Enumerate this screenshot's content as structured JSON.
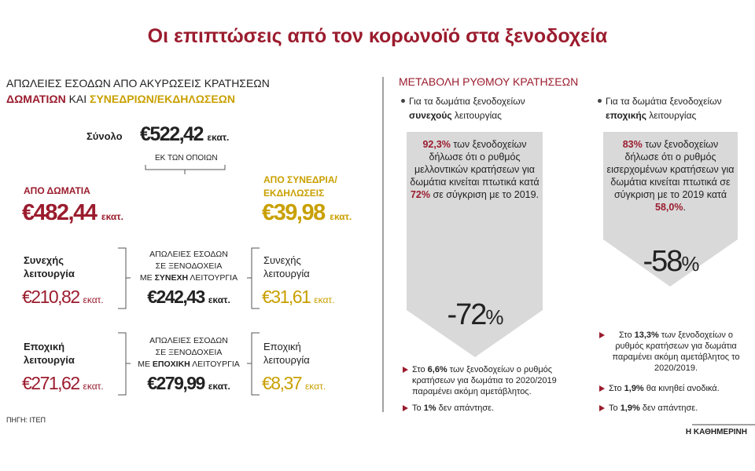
{
  "title": "Οι επιπτώσεις από τον κορωνοϊό στα ξενοδοχεία",
  "unit": "εκατ.",
  "left": {
    "heading": "ΑΠΩΛΕΙΕΣ ΕΣΟΔΩΝ ΑΠΟ ΑΚΥΡΩΣΕΙΣ ΚΡΑΤΗΣΕΩΝ",
    "sub": [
      "ΔΩΜΑΤΙΩΝ",
      " ΚΑΙ ",
      "ΣΥΝΕΔΡΙΩΝ/ΕΚΔΗΛΩΣΕΩΝ"
    ],
    "total_label": "Σύνολο",
    "total_value": "€522,42",
    "of_which": "ΕΚ ΤΩΝ ΟΠΟΙΩΝ",
    "rooms_label": "ΑΠΟ ΔΩΜΑΤΙΑ",
    "rooms_value": "€482,44",
    "conf_label": [
      "ΑΠΟ ΣΥΝΕΔΡΙΑ/",
      "ΕΚΔΗΛΩΣΕΙΣ"
    ],
    "conf_value": "€39,98",
    "rows": [
      {
        "rooms_label": [
          "Συνεχής",
          "λειτουργία"
        ],
        "rooms_value": "€210,82",
        "center": [
          "ΑΠΩΛΕΙΕΣ ΕΣΟΔΩΝ",
          "ΣΕ ΞΕΝΟΔΟΧΕΙΑ"
        ],
        "center_last": [
          "ΜΕ ",
          "ΣΥΝΕΧΗ",
          " ΛΕΙΤΟΥΡΓΙΑ"
        ],
        "center_value": "€242,43",
        "conf_label": [
          "Συνεχής",
          "λειτουργία"
        ],
        "conf_value": "€31,61"
      },
      {
        "rooms_label": [
          "Εποχική",
          "λειτουργία"
        ],
        "rooms_value": "€271,62",
        "center": [
          "ΑΠΩΛΕΙΕΣ ΕΣΟΔΩΝ",
          "ΣΕ ΞΕΝΟΔΟΧΕΙΑ"
        ],
        "center_last": [
          "ΜΕ ",
          "ΕΠΟΧΙΚΗ",
          " ΛΕΙΤΟΥΡΓΙΑ"
        ],
        "center_value": "€279,99",
        "conf_label": [
          "Εποχική",
          "λειτουργία"
        ],
        "conf_value": "€8,37"
      }
    ],
    "source": "ΠΗΓΗ: ΙΤΕΠ"
  },
  "right": {
    "heading": "ΜΕΤΑΒΟΛΗ ΡΥΘΜΟΥ ΚΡΑΤΗΣΕΩΝ",
    "columns": [
      {
        "intro": [
          "Για τα δωμάτια ξενοδοχείων ",
          "συνεχούς",
          " λειτουργίας"
        ],
        "box": [
          "92,3%",
          " των ξενοδοχείων δήλωσε ότι ο ρυθμός μελλοντικών κρατήσεων για δωμάτια κινείται πτωτικά κατά ",
          "72%",
          " σε σύγκριση με το 2019."
        ],
        "big_value": "-72",
        "big_unit": "%",
        "notes": [
          [
            "Στο ",
            "6,6%",
            " των ξενοδοχείων ο ρυθμός κρατήσεων για δωμάτια το 2020/2019 παραμένει ακόμη αμετάβλητος."
          ],
          [
            "Το ",
            "1%",
            " δεν απάντησε."
          ]
        ]
      },
      {
        "intro": [
          "Για τα δωμάτια ξενοδοχείων ",
          "εποχικής",
          " λειτουργίας"
        ],
        "box": [
          "83%",
          " των ξενοδοχείων δήλωσε ότι ο ρυθμός εισερχομένων κρατήσεων για δωμάτια κινείται πτωτικά σε σύγκριση με το 2019 κατά ",
          "58,0%",
          "."
        ],
        "big_value": "-58",
        "big_unit": "%",
        "notes": [
          [
            "Στο ",
            "13,3%",
            " των ξενοδοχείων ο ρυθμός κρατήσεων για δωμάτια παραμένει ακόμη αμετάβλητος το 2020/2019."
          ],
          [
            "Στο ",
            "1,9%",
            " θα κινηθεί ανοδικά."
          ],
          [
            "Το ",
            "1,9%",
            " δεν απάντησε."
          ]
        ]
      }
    ]
  },
  "footer": "Η ΚΑΘΗΜΕΡΙΝΗ"
}
